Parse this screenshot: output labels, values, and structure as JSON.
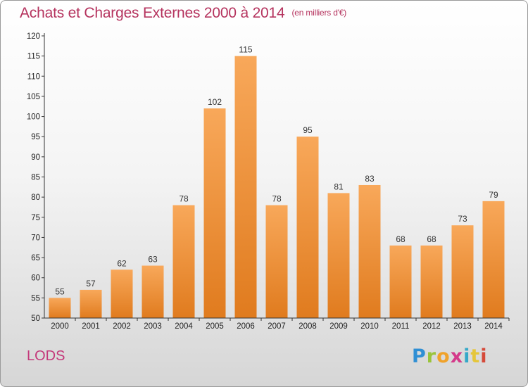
{
  "title": "Achats et Charges Externes 2000 à 2014",
  "unit_note": "(en milliers d'€)",
  "place": "LODS",
  "logo_text": "Proxiti",
  "colors": {
    "title": "#b5335e",
    "place": "#c4387a",
    "bar_top": "#f8a85a",
    "bar_bottom": "#e07b1e",
    "axis": "#333333",
    "grid": "#e0e0e0"
  },
  "chart_data": {
    "type": "bar",
    "categories": [
      "2000",
      "2001",
      "2002",
      "2003",
      "2004",
      "2005",
      "2006",
      "2007",
      "2008",
      "2009",
      "2010",
      "2011",
      "2012",
      "2013",
      "2014"
    ],
    "values": [
      55,
      57,
      62,
      63,
      78,
      102,
      115,
      78,
      95,
      81,
      83,
      68,
      68,
      73,
      79
    ],
    "ylim": [
      50,
      120
    ],
    "yticks": [
      50,
      55,
      60,
      65,
      70,
      75,
      80,
      85,
      90,
      95,
      100,
      105,
      110,
      115,
      120
    ],
    "grid": false,
    "data_labels": true,
    "xlabel": "",
    "ylabel": ""
  }
}
